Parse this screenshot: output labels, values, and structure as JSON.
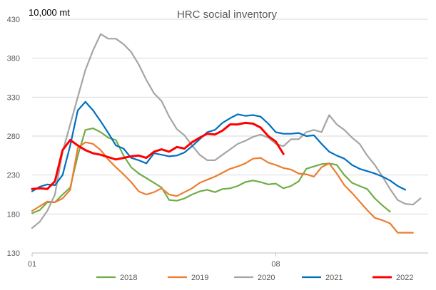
{
  "chart_data": {
    "type": "line",
    "title": "HRC social inventory",
    "unit_label": "10,000 mt",
    "ylim": [
      130,
      430
    ],
    "y_ticks": [
      "130",
      "180",
      "230",
      "280",
      "330",
      "380",
      "430"
    ],
    "x_ticks": [
      {
        "week": 1,
        "label": "01"
      },
      {
        "week": 33,
        "label": "08"
      }
    ],
    "xlim": [
      1,
      53
    ],
    "grid": true,
    "legend_position": "bottom",
    "series": [
      {
        "name": "2018",
        "color": "#70AD47",
        "values": [
          181,
          185,
          195,
          195,
          205,
          214,
          255,
          288,
          290,
          285,
          278,
          275,
          255,
          240,
          232,
          226,
          220,
          214,
          198,
          197,
          200,
          205,
          209,
          211,
          208,
          212,
          213,
          216,
          221,
          223,
          221,
          218,
          219,
          213,
          216,
          222,
          238,
          241,
          244,
          245,
          243,
          230,
          220,
          216,
          212,
          200,
          191,
          183
        ]
      },
      {
        "name": "2019",
        "color": "#ED7D31",
        "values": [
          184,
          190,
          196,
          195,
          200,
          211,
          265,
          272,
          270,
          262,
          250,
          240,
          231,
          221,
          209,
          205,
          208,
          213,
          205,
          203,
          208,
          213,
          220,
          224,
          228,
          233,
          238,
          241,
          245,
          251,
          252,
          246,
          243,
          239,
          237,
          232,
          231,
          228,
          240,
          245,
          232,
          217,
          207,
          196,
          185,
          175,
          172,
          168,
          156,
          156,
          156
        ]
      },
      {
        "name": "2020",
        "color": "#A5A5A5",
        "values": [
          162,
          170,
          184,
          205,
          260,
          295,
          330,
          365,
          390,
          411,
          405,
          405,
          398,
          388,
          372,
          352,
          335,
          325,
          305,
          289,
          281,
          268,
          256,
          249,
          249,
          256,
          263,
          270,
          274,
          279,
          282,
          278,
          270,
          267,
          276,
          276,
          285,
          288,
          285,
          307,
          295,
          288,
          278,
          270,
          255,
          243,
          228,
          212,
          198,
          193,
          192,
          200
        ]
      },
      {
        "name": "2021",
        "color": "#0070C0",
        "values": [
          209,
          215,
          218,
          217,
          230,
          268,
          313,
          324,
          313,
          299,
          284,
          268,
          264,
          252,
          249,
          245,
          258,
          256,
          254,
          255,
          259,
          267,
          276,
          285,
          288,
          297,
          303,
          308,
          306,
          307,
          305,
          296,
          285,
          283,
          283,
          284,
          280,
          281,
          270,
          260,
          255,
          251,
          243,
          238,
          235,
          232,
          228,
          223,
          216,
          211
        ]
      },
      {
        "name": "2022",
        "color": "#FF0000",
        "values": [
          212,
          213,
          212,
          222,
          262,
          275,
          268,
          262,
          258,
          256,
          253,
          250,
          252,
          254,
          255,
          252,
          260,
          263,
          260,
          266,
          264,
          272,
          278,
          283,
          282,
          287,
          295,
          295,
          297,
          296,
          291,
          280,
          273,
          257
        ]
      }
    ]
  }
}
